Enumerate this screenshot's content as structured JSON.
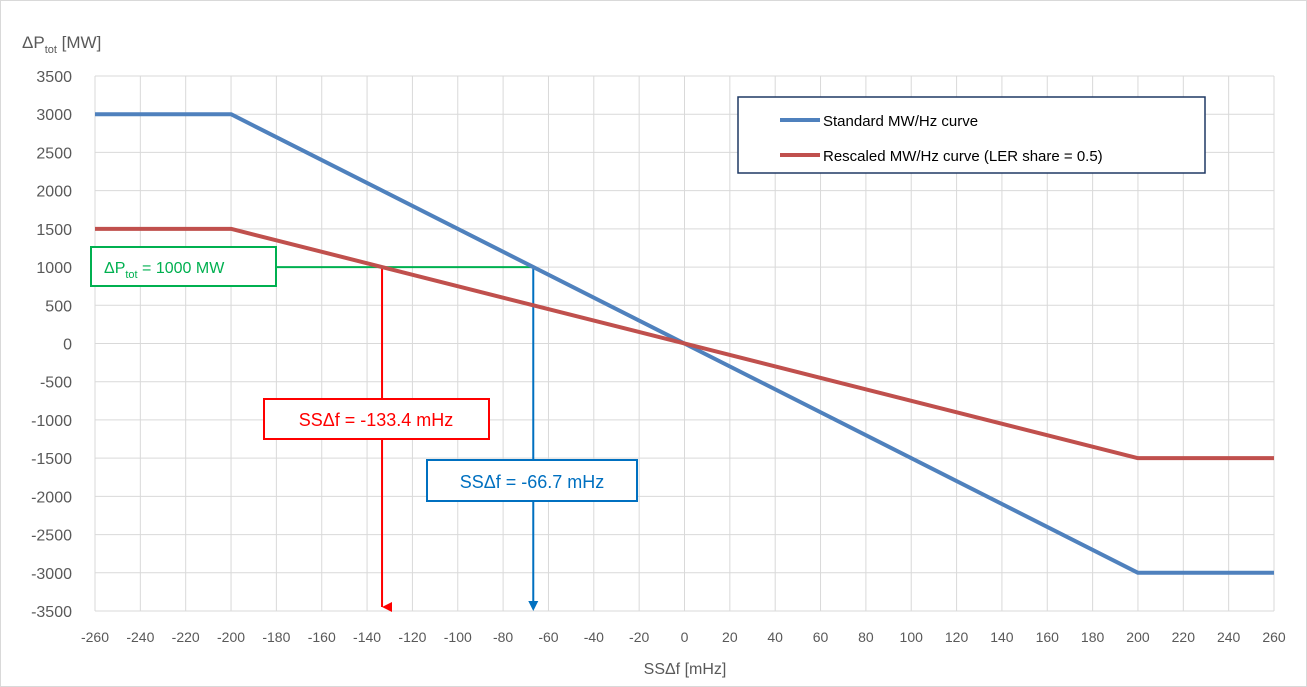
{
  "chart_data": {
    "type": "line",
    "title": "",
    "ylabel_main": "ΔP",
    "ylabel_sub": "tot",
    "ylabel_unit": " [MW]",
    "xlabel": "SSΔf [mHz]",
    "xlim": [
      -260,
      260
    ],
    "ylim": [
      -3500,
      3500
    ],
    "xticks": [
      -260,
      -240,
      -220,
      -200,
      -180,
      -160,
      -140,
      -120,
      -100,
      -80,
      -60,
      -40,
      -20,
      0,
      20,
      40,
      60,
      80,
      100,
      120,
      140,
      160,
      180,
      200,
      220,
      240,
      260
    ],
    "yticks": [
      3500,
      3000,
      2500,
      2000,
      1500,
      1000,
      500,
      0,
      -500,
      -1000,
      -1500,
      -2000,
      -2500,
      -3000,
      -3500
    ],
    "grid": true,
    "legend_position": "top-right",
    "series": [
      {
        "name": "Standard MW/Hz curve",
        "color": "#4f81bd",
        "x": [
          -260,
          -200,
          200,
          260
        ],
        "y": [
          3000,
          3000,
          -3000,
          -3000
        ]
      },
      {
        "name": "Rescaled MW/Hz curve (LER share = 0.5)",
        "color": "#c0504d",
        "x": [
          -260,
          -200,
          200,
          260
        ],
        "y": [
          1500,
          1500,
          -1500,
          -1500
        ]
      }
    ],
    "annotations": {
      "hline": {
        "y": 1000,
        "x_to": -66.7,
        "color": "#00b050",
        "label_main": "ΔP",
        "label_sub": "tot",
        "label_rest": " = 1000 MW"
      },
      "red_marker": {
        "x": -133.4,
        "color": "#ff0000",
        "label": "SSΔf = -133.4 mHz"
      },
      "blue_marker": {
        "x": -66.7,
        "color": "#0070c0",
        "label": "SSΔf = -66.7 mHz"
      }
    }
  }
}
